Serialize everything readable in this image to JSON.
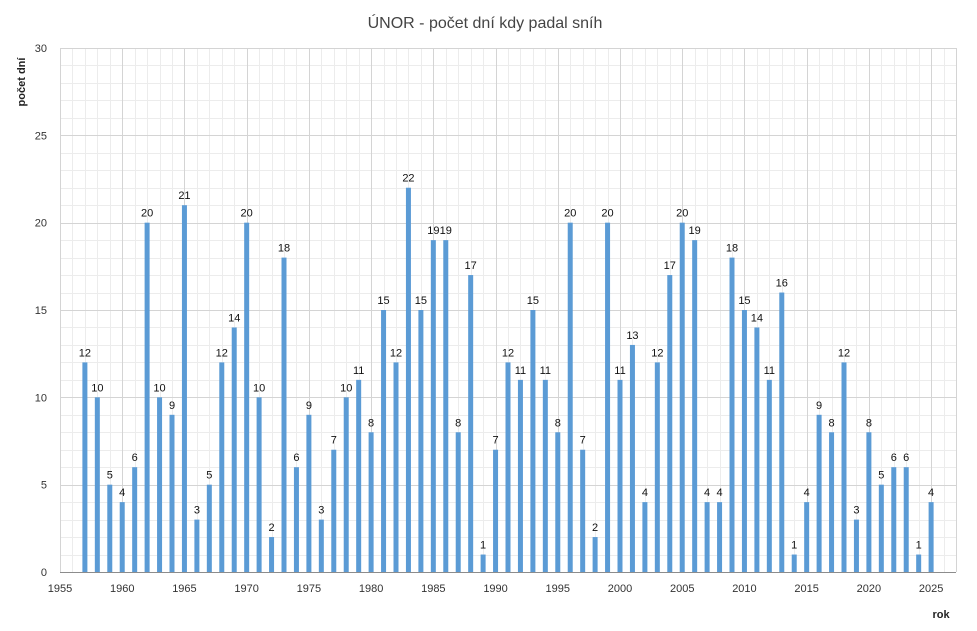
{
  "chart_data": {
    "type": "bar",
    "title": "ÚNOR - počet dní kdy padal sníh",
    "xlabel": "rok",
    "ylabel": "počet dní",
    "xlim": [
      1955,
      2027
    ],
    "ylim": [
      0,
      30
    ],
    "x_ticks": [
      1955,
      1960,
      1965,
      1970,
      1975,
      1980,
      1985,
      1990,
      1995,
      2000,
      2005,
      2010,
      2015,
      2020,
      2025
    ],
    "y_ticks": [
      0,
      5,
      10,
      15,
      20,
      25,
      30
    ],
    "grid": true,
    "legend": "none",
    "bar_color": "#5b9bd5",
    "data_labels": true,
    "x": [
      1957,
      1958,
      1959,
      1960,
      1961,
      1962,
      1963,
      1964,
      1965,
      1966,
      1967,
      1968,
      1969,
      1970,
      1971,
      1972,
      1973,
      1974,
      1975,
      1976,
      1977,
      1978,
      1979,
      1980,
      1981,
      1982,
      1983,
      1984,
      1985,
      1986,
      1987,
      1988,
      1989,
      1990,
      1991,
      1992,
      1993,
      1994,
      1995,
      1996,
      1997,
      1998,
      1999,
      2000,
      2001,
      2002,
      2003,
      2004,
      2005,
      2006,
      2007,
      2008,
      2009,
      2010,
      2011,
      2012,
      2013,
      2014,
      2015,
      2016,
      2017,
      2018,
      2019,
      2020,
      2021,
      2022,
      2023,
      2024,
      2025
    ],
    "values": [
      12,
      10,
      5,
      4,
      6,
      20,
      10,
      9,
      21,
      3,
      5,
      12,
      14,
      20,
      10,
      2,
      18,
      6,
      9,
      3,
      7,
      10,
      11,
      8,
      15,
      12,
      22,
      15,
      19,
      19,
      8,
      17,
      1,
      7,
      12,
      11,
      15,
      11,
      8,
      20,
      7,
      2,
      20,
      11,
      13,
      4,
      12,
      17,
      20,
      19,
      4,
      4,
      18,
      15,
      14,
      11,
      16,
      1,
      4,
      9,
      8,
      12,
      3,
      8,
      5,
      6,
      6,
      1,
      4
    ]
  }
}
